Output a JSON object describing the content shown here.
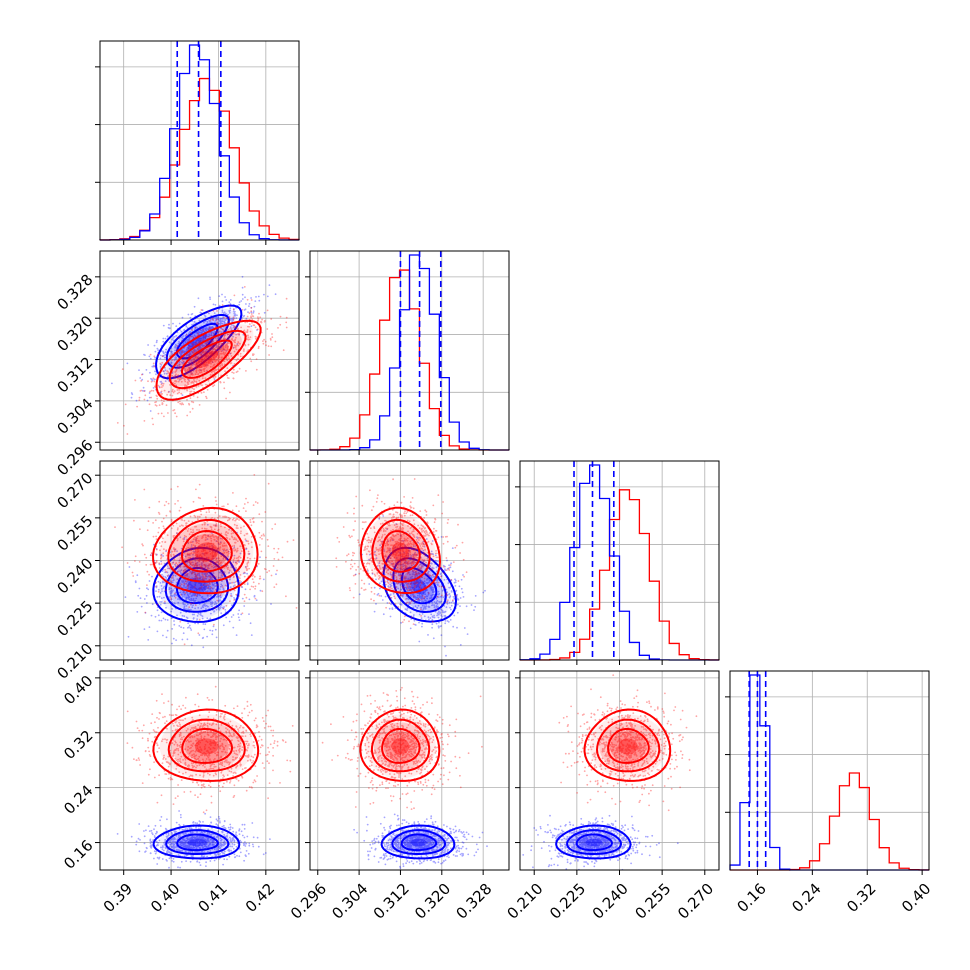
{
  "chart_data": {
    "type": "corner",
    "description": "Corner plot comparing two posterior samples over four parameters",
    "series": [
      {
        "name": "",
        "color": "#0000ff",
        "quantile_lines_style": "dashed"
      },
      {
        "name": "",
        "color": "#ff0000"
      }
    ],
    "parameters": [
      {
        "range": [
          0.385,
          0.427
        ],
        "ticks": [
          0.39,
          0.4,
          0.41,
          0.42
        ],
        "tick_labels": [
          "0.39",
          "0.40",
          "0.41",
          "0.42"
        ],
        "blue": {
          "mean": 0.4055,
          "sd": 0.0045,
          "quantiles": [
            0.4013,
            0.4058,
            0.4105
          ]
        },
        "red": {
          "mean": 0.4075,
          "sd": 0.0055
        }
      },
      {
        "range": [
          0.2945,
          0.333
        ],
        "ticks": [
          0.296,
          0.304,
          0.312,
          0.32,
          0.328
        ],
        "tick_labels": [
          "0.296",
          "0.304",
          "0.312",
          "0.320",
          "0.328"
        ],
        "blue": {
          "mean": 0.3155,
          "sd": 0.0035,
          "quantiles": [
            0.312,
            0.3157,
            0.3198
          ]
        },
        "red": {
          "mean": 0.312,
          "sd": 0.0038
        }
      },
      {
        "range": [
          0.205,
          0.275
        ],
        "ticks": [
          0.21,
          0.225,
          0.24,
          0.255,
          0.27
        ],
        "tick_labels": [
          "0.210",
          "0.225",
          "0.240",
          "0.255",
          "0.270"
        ],
        "blue": {
          "mean": 0.231,
          "sd": 0.0065,
          "quantiles": [
            0.224,
            0.2305,
            0.238
          ]
        },
        "red": {
          "mean": 0.243,
          "sd": 0.0075
        }
      },
      {
        "range": [
          0.12,
          0.41
        ],
        "ticks": [
          0.16,
          0.24,
          0.32,
          0.4
        ],
        "tick_labels": [
          "0.16",
          "0.24",
          "0.32",
          "0.40"
        ],
        "blue": {
          "mean": 0.16,
          "sd": 0.012,
          "quantiles": [
            0.148,
            0.16,
            0.172
          ]
        },
        "red": {
          "mean": 0.3,
          "sd": 0.026
        }
      }
    ],
    "correlations": {
      "blue": {
        "1-0": 0.72,
        "2-0": 0.05,
        "2-1": -0.35,
        "3-0": 0.0,
        "3-1": 0.0,
        "3-2": 0.0
      },
      "red": {
        "1-0": 0.72,
        "2-0": 0.05,
        "2-1": -0.1,
        "3-0": 0.0,
        "3-1": 0.0,
        "3-2": 0.0
      }
    },
    "grid": true
  }
}
